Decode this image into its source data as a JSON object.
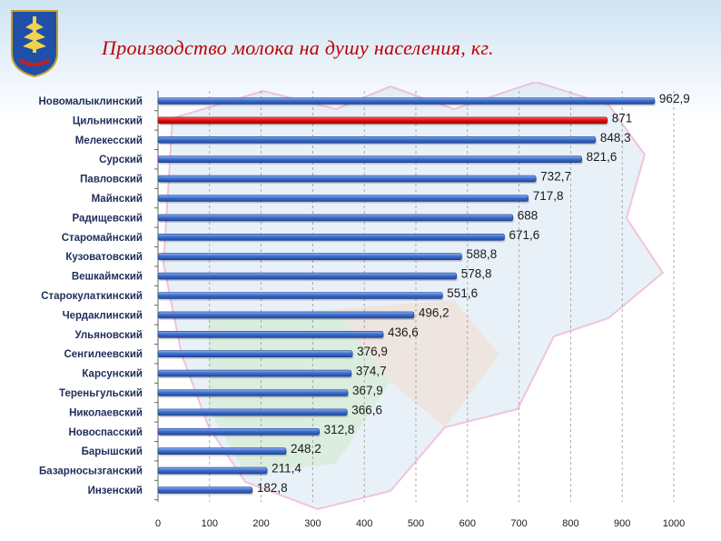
{
  "header": {
    "title": "Производство молока на душу населения,  кг."
  },
  "colors": {
    "bar": "#3d6fd1",
    "highlight_bar": "#e01010",
    "title": "#c00000"
  },
  "chart_data": {
    "type": "bar",
    "orientation": "horizontal",
    "title": "Производство молока на душу населения,  кг.",
    "categories": [
      "Новомалыклинский",
      "Цильнинский",
      "Мелекесский",
      "Сурский",
      "Павловский",
      "Майнский",
      "Радищевский",
      "Старомайнский",
      "Кузоватовский",
      "Вешкаймский",
      "Старокулаткинский",
      "Чердаклинский",
      "Ульяновский",
      "Сенгилеевский",
      "Карсунский",
      "Тереньгульский",
      "Николаевский",
      "Новоспасский",
      "Барышский",
      "Базарносызганский",
      "Инзенский"
    ],
    "values": [
      962.9,
      871,
      848.3,
      821.6,
      732.7,
      717.8,
      688,
      671.6,
      588.8,
      578.8,
      551.6,
      496.2,
      436.6,
      376.9,
      374.7,
      367.9,
      366.6,
      312.8,
      248.2,
      211.4,
      182.8
    ],
    "value_labels": [
      "962,9",
      "871",
      "848,3",
      "821,6",
      "732,7",
      "717,8",
      "688",
      "671,6",
      "588,8",
      "578,8",
      "551,6",
      "496,2",
      "436,6",
      "376,9",
      "374,7",
      "367,9",
      "366,6",
      "312,8",
      "248,2",
      "211,4",
      "182,8"
    ],
    "highlight_index": 1,
    "xlim": [
      0,
      1000
    ],
    "xticks": [
      0,
      100,
      200,
      300,
      400,
      500,
      600,
      700,
      800,
      900,
      1000
    ],
    "grid": "vertical dashed",
    "legend": "none"
  }
}
